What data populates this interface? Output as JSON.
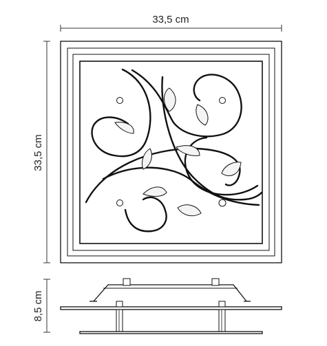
{
  "dimensions": {
    "width_label": "33,5 cm",
    "height_label": "33,5 cm",
    "depth_label": "8,5 cm"
  },
  "colors": {
    "line": "#111111",
    "dimension": "#333333",
    "text": "#222222"
  }
}
